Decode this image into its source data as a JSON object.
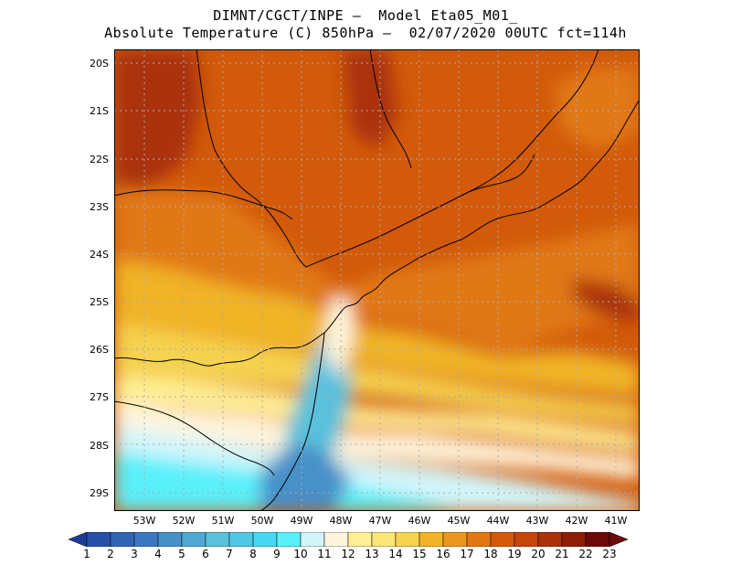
{
  "header": {
    "line1": "DIMNT/CGCT/INPE –  Model Eta05_M01_",
    "line2": "Absolute Temperature (C) 850hPa –  02/07/2020 00UTC fct=114h"
  },
  "axes": {
    "lat_labels": [
      "20S",
      "21S",
      "22S",
      "23S",
      "24S",
      "25S",
      "26S",
      "27S",
      "28S",
      "29S"
    ],
    "lon_labels": [
      "53W",
      "52W",
      "51W",
      "50W",
      "49W",
      "48W",
      "47W",
      "46W",
      "45W",
      "44W",
      "43W",
      "42W",
      "41W"
    ]
  },
  "colorbar": {
    "labels": [
      "1",
      "2",
      "3",
      "4",
      "5",
      "6",
      "7",
      "8",
      "9",
      "10",
      "11",
      "12",
      "13",
      "14",
      "15",
      "16",
      "17",
      "18",
      "19",
      "20",
      "21",
      "22",
      "23"
    ],
    "colors": [
      "#1e3c96",
      "#2850a8",
      "#3264b4",
      "#3c78c0",
      "#4690c8",
      "#50a8d2",
      "#5ac0dc",
      "#50c8e6",
      "#46d8f0",
      "#5af0fa",
      "#d2f5fa",
      "#fff5dc",
      "#fff096",
      "#fae678",
      "#f5d250",
      "#f0b428",
      "#eb961e",
      "#e17814",
      "#d25a0a",
      "#c3460a",
      "#aa320a",
      "#8c1e0a",
      "#6e0a0a"
    ]
  },
  "legend_extra": {
    "under_color": "#1e3c96",
    "over_color": "#6e0a0a"
  }
}
